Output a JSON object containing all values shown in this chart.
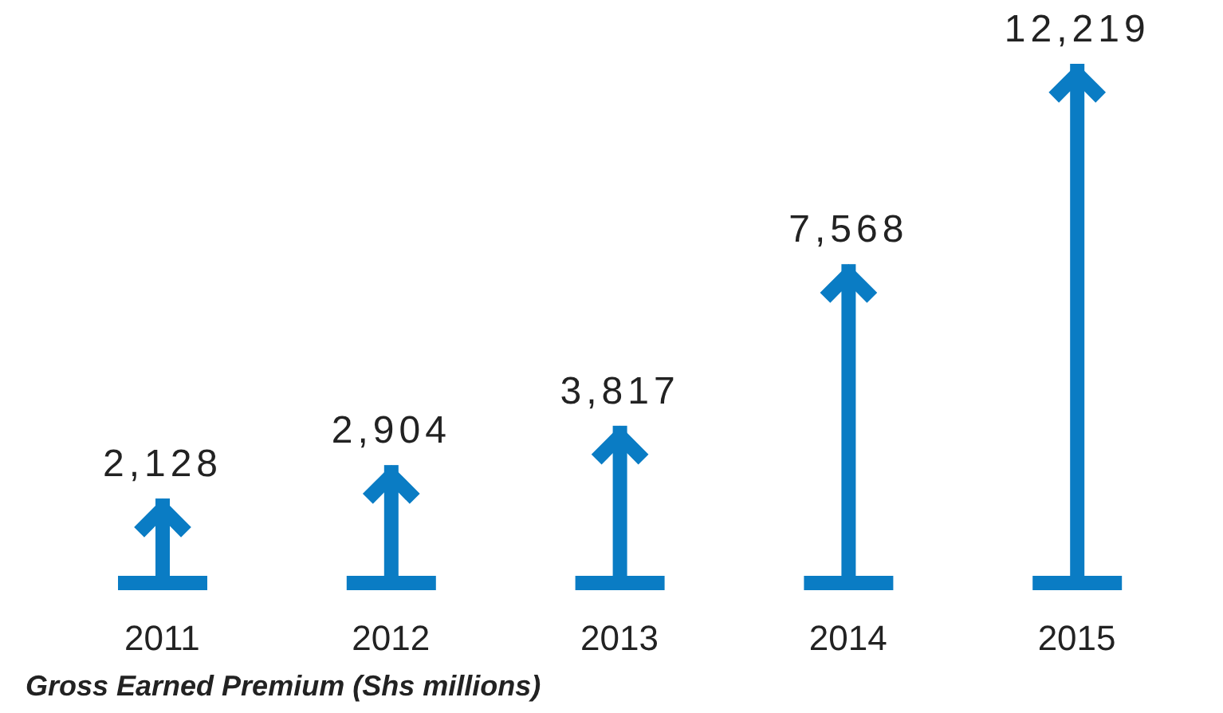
{
  "chart_data": {
    "type": "bar",
    "title": "Gross Earned Premium (Shs millions)",
    "categories": [
      "2011",
      "2012",
      "2013",
      "2014",
      "2015"
    ],
    "values": [
      2128,
      2904,
      3817,
      7568,
      12219
    ],
    "color": "#0a7cc4",
    "data_labels": true,
    "value_labels": [
      "2,128",
      "2,904",
      "3,817",
      "7,568",
      "12,219"
    ],
    "grid": false,
    "legend": false
  }
}
